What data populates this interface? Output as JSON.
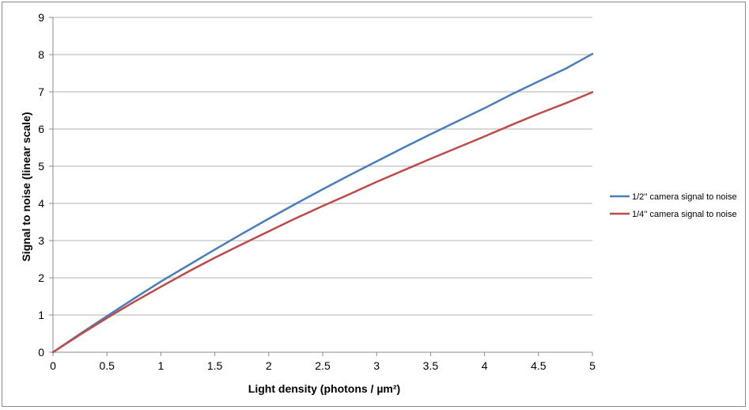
{
  "chart_data": {
    "type": "line",
    "xlabel": "Light density (photons / µm²)",
    "ylabel": "Signal to noise (linear scale)",
    "xlim": [
      0,
      5
    ],
    "ylim": [
      0,
      9
    ],
    "x_ticks": [
      "0",
      "0.5",
      "1",
      "1.5",
      "2",
      "2.5",
      "3",
      "3.5",
      "4",
      "4.5",
      "5"
    ],
    "y_ticks": [
      "0",
      "1",
      "2",
      "3",
      "4",
      "5",
      "6",
      "7",
      "8",
      "9"
    ],
    "grid": "horizontal",
    "legend_position": "right",
    "x": [
      0,
      0.25,
      0.5,
      0.75,
      1,
      1.25,
      1.5,
      1.75,
      2,
      2.25,
      2.5,
      2.75,
      3,
      3.25,
      3.5,
      3.75,
      4,
      4.25,
      4.5,
      4.75,
      5
    ],
    "series": [
      {
        "name": "1/2'' camera signal to noise",
        "color": "#4a7ebb",
        "values": [
          0,
          0.49,
          0.97,
          1.44,
          1.9,
          2.33,
          2.76,
          3.18,
          3.59,
          3.99,
          4.38,
          4.76,
          5.13,
          5.5,
          5.86,
          6.21,
          6.56,
          6.93,
          7.28,
          7.62,
          8.02
        ]
      },
      {
        "name": "1/4'' camera signal to noise",
        "color": "#be4b48",
        "values": [
          0,
          0.47,
          0.92,
          1.35,
          1.76,
          2.16,
          2.54,
          2.9,
          3.25,
          3.6,
          3.93,
          4.25,
          4.58,
          4.89,
          5.2,
          5.5,
          5.8,
          6.11,
          6.41,
          6.69,
          6.99
        ]
      }
    ]
  }
}
